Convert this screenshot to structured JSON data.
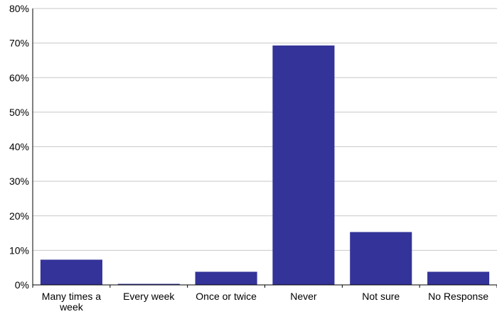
{
  "chart_data": {
    "type": "bar",
    "categories": [
      [
        "Many times a",
        "week"
      ],
      [
        "Every week"
      ],
      [
        "Once or twice"
      ],
      [
        "Never"
      ],
      [
        "Not sure"
      ],
      [
        "No Response"
      ]
    ],
    "values": [
      7.3,
      0.3,
      3.8,
      69.3,
      15.3,
      3.8
    ],
    "y_ticks": [
      "0%",
      "10%",
      "20%",
      "30%",
      "40%",
      "50%",
      "60%",
      "70%",
      "80%"
    ],
    "ylim": [
      0,
      80
    ],
    "grid": true,
    "bar_color": "#333399",
    "grid_color": "#c8c8c8",
    "title": "",
    "xlabel": "",
    "ylabel": ""
  }
}
